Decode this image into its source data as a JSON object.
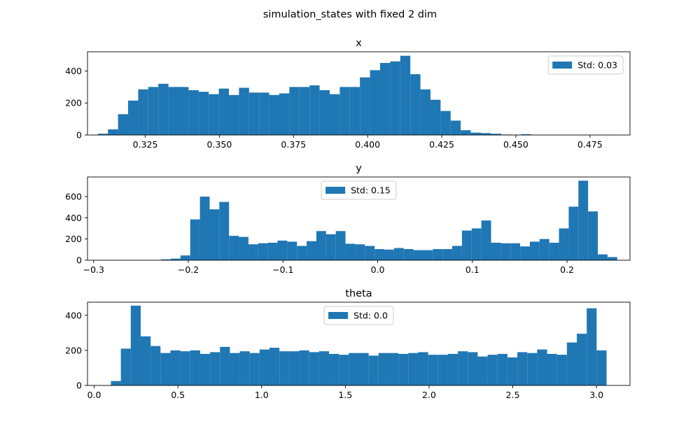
{
  "figure_title": "simulation_states with fixed 2 dim",
  "chart_data": [
    {
      "type": "bar",
      "title": "x",
      "bar_color": "#1f77b4",
      "legend": {
        "label": "Std: 0.03",
        "placement": "upper-right"
      },
      "xlim": [
        0.3055,
        0.4885
      ],
      "ylim": [
        0,
        520
      ],
      "xticks": [
        0.325,
        0.35,
        0.375,
        0.4,
        0.425,
        0.45,
        0.475
      ],
      "xtick_labels": [
        "0.325",
        "0.350",
        "0.375",
        "0.400",
        "0.425",
        "0.450",
        "0.475"
      ],
      "yticks": [
        0,
        200,
        400
      ],
      "yticks_labels": [
        "0",
        "200",
        "400"
      ],
      "bin_start": 0.309,
      "bin_width": 0.0034,
      "values": [
        8,
        35,
        130,
        215,
        285,
        300,
        320,
        300,
        300,
        280,
        270,
        255,
        290,
        250,
        295,
        265,
        265,
        250,
        260,
        300,
        300,
        310,
        280,
        255,
        300,
        300,
        360,
        405,
        450,
        460,
        495,
        380,
        285,
        220,
        150,
        90,
        30,
        15,
        12,
        8,
        3,
        2,
        5,
        2,
        1,
        1,
        1,
        1,
        1,
        1,
        1,
        1
      ]
    },
    {
      "type": "bar",
      "title": "y",
      "bar_color": "#1f77b4",
      "legend": {
        "label": "Std: 0.15",
        "placement": "upper-center"
      },
      "xlim": [
        -0.3065,
        0.2665
      ],
      "ylim": [
        0,
        785
      ],
      "xticks": [
        -0.3,
        -0.2,
        -0.1,
        0.0,
        0.1,
        0.2
      ],
      "xtick_labels": [
        "−0.3",
        "−0.2",
        "−0.1",
        "0.0",
        "0.1",
        "0.2"
      ],
      "yticks": [
        0,
        200,
        400,
        600
      ],
      "yticks_labels": [
        "0",
        "200",
        "400",
        "600"
      ],
      "bin_start": -0.28,
      "bin_width": 0.01025,
      "values": [
        1,
        1,
        1,
        1,
        1,
        8,
        15,
        45,
        385,
        600,
        480,
        550,
        230,
        220,
        150,
        160,
        165,
        185,
        175,
        135,
        180,
        275,
        245,
        275,
        155,
        150,
        135,
        105,
        100,
        115,
        105,
        95,
        95,
        105,
        105,
        135,
        280,
        300,
        375,
        165,
        160,
        160,
        130,
        175,
        200,
        165,
        300,
        505,
        750,
        460,
        55,
        30
      ]
    },
    {
      "type": "bar",
      "title": "theta",
      "bar_color": "#1f77b4",
      "legend": {
        "label": "Std: 0.0",
        "placement": "upper-center"
      },
      "xlim": [
        -0.04,
        3.2
      ],
      "ylim": [
        0,
        475
      ],
      "xticks": [
        0.0,
        0.5,
        1.0,
        1.5,
        2.0,
        2.5,
        3.0
      ],
      "xtick_labels": [
        "0.0",
        "0.5",
        "1.0",
        "1.5",
        "2.0",
        "2.5",
        "3.0"
      ],
      "yticks": [
        0,
        200,
        400
      ],
      "yticks_labels": [
        "0",
        "200",
        "400"
      ],
      "bin_start": 0.1,
      "bin_width": 0.0592,
      "values": [
        25,
        210,
        455,
        280,
        225,
        185,
        200,
        195,
        200,
        180,
        190,
        220,
        185,
        195,
        185,
        205,
        215,
        195,
        195,
        200,
        190,
        195,
        180,
        175,
        185,
        185,
        170,
        185,
        185,
        180,
        185,
        190,
        175,
        175,
        180,
        195,
        190,
        165,
        175,
        180,
        160,
        190,
        185,
        205,
        180,
        175,
        245,
        295,
        440,
        200
      ]
    }
  ]
}
